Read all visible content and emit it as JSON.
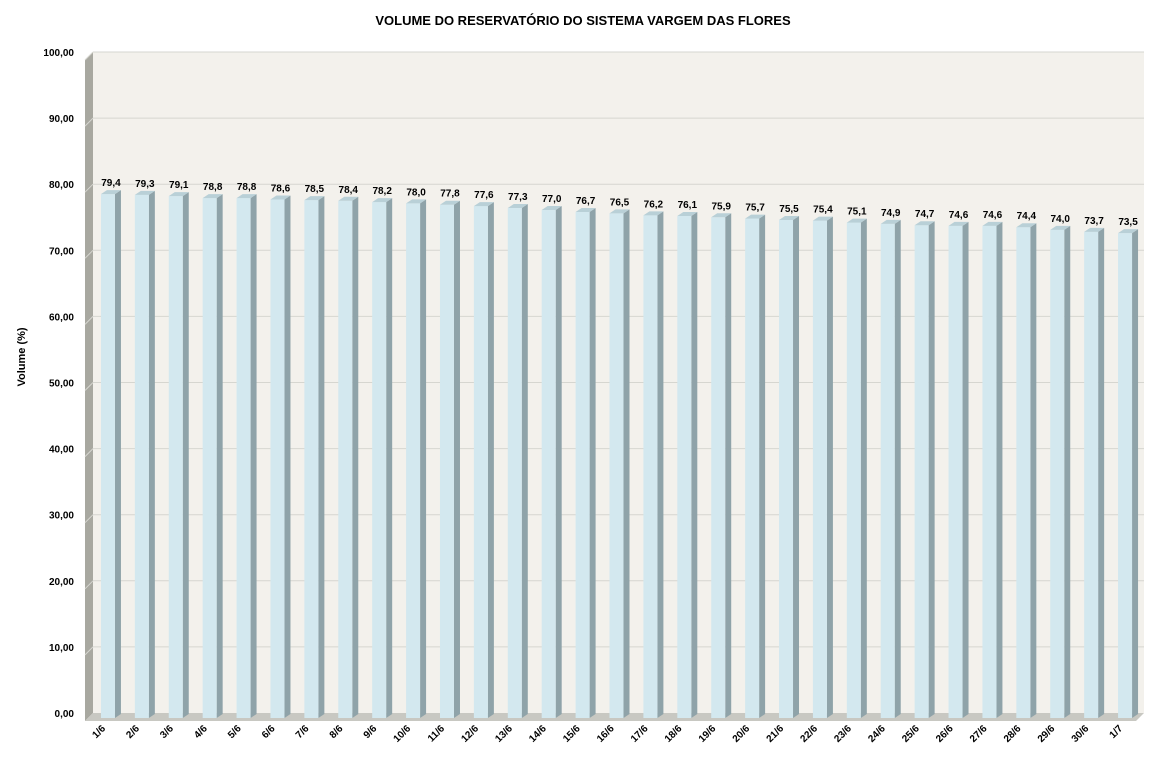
{
  "chart_data": {
    "type": "bar",
    "title": "VOLUME DO RESERVATÓRIO DO SISTEMA VARGEM DAS FLORES",
    "xlabel": "",
    "ylabel": "Volume (%)",
    "ylim": [
      0,
      100
    ],
    "yticks": [
      "0,00",
      "10,00",
      "20,00",
      "30,00",
      "40,00",
      "50,00",
      "60,00",
      "70,00",
      "80,00",
      "90,00",
      "100,00"
    ],
    "grid": true,
    "legend": "none",
    "categories": [
      "1/6",
      "2/6",
      "3/6",
      "4/6",
      "5/6",
      "6/6",
      "7/6",
      "8/6",
      "9/6",
      "10/6",
      "11/6",
      "12/6",
      "13/6",
      "14/6",
      "15/6",
      "16/6",
      "17/6",
      "18/6",
      "19/6",
      "20/6",
      "21/6",
      "22/6",
      "23/6",
      "24/6",
      "25/6",
      "26/6",
      "27/6",
      "28/6",
      "29/6",
      "30/6",
      "1/7"
    ],
    "values": [
      79.4,
      79.3,
      79.1,
      78.8,
      78.8,
      78.6,
      78.5,
      78.4,
      78.2,
      78.0,
      77.8,
      77.6,
      77.3,
      77.0,
      76.7,
      76.5,
      76.2,
      76.1,
      75.9,
      75.7,
      75.5,
      75.4,
      75.1,
      74.9,
      74.7,
      74.6,
      74.6,
      74.4,
      74.0,
      73.7,
      73.5
    ],
    "data_labels": [
      "79,4",
      "79,3",
      "79,1",
      "78,8",
      "78,8",
      "78,6",
      "78,5",
      "78,4",
      "78,2",
      "78,0",
      "77,8",
      "77,6",
      "77,3",
      "77,0",
      "76,7",
      "76,5",
      "76,2",
      "76,1",
      "75,9",
      "75,7",
      "75,5",
      "75,4",
      "75,1",
      "74,9",
      "74,7",
      "74,6",
      "74,6",
      "74,4",
      "74,0",
      "73,7",
      "73,5"
    ],
    "colors": {
      "bar_front": "#d3e8ef",
      "bar_side": "#8fa3a9",
      "bar_top": "#b9d0d7",
      "plot_bg": "#f3f1ec",
      "wall_side": "#a8a8a0",
      "floor": "#c8c8c2",
      "gridline": "#d6d6d0"
    }
  }
}
